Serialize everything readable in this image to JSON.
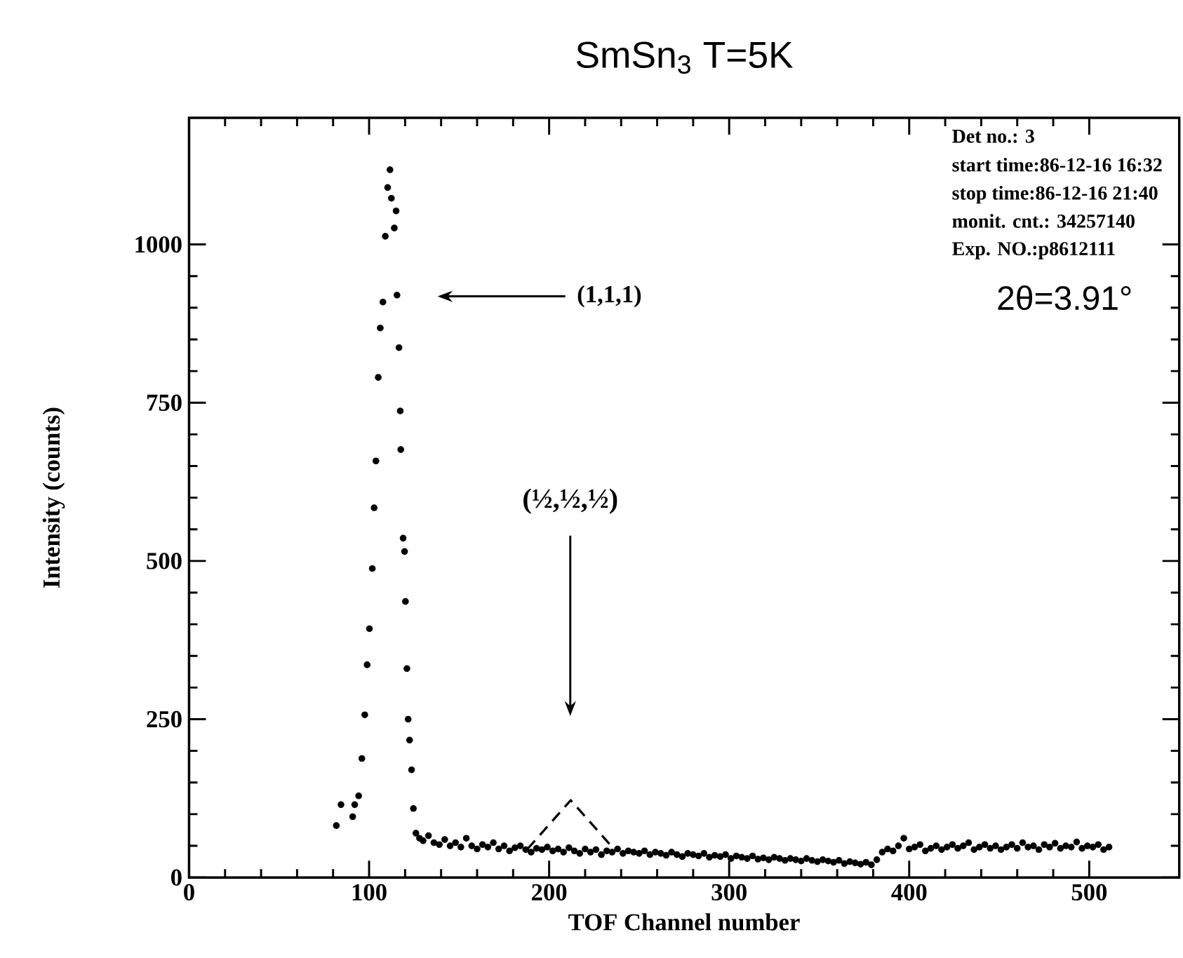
{
  "chart_data": {
    "type": "scatter",
    "title": "SmSn$_{3}$   T=5K",
    "xlabel": "TOF Channel number",
    "ylabel": "Intensity (counts)",
    "xlim": [
      0,
      550
    ],
    "ylim": [
      0,
      1200
    ],
    "xticks": [
      0,
      100,
      200,
      300,
      400,
      500
    ],
    "yticks": [
      0,
      250,
      500,
      750,
      1000
    ],
    "grid": false,
    "marker": "circle",
    "series": [
      {
        "color": "#000000",
        "x": [
          81.8,
          84.4,
          90.9,
          92,
          94.2,
          96,
          97.6,
          98.9,
          100.2,
          101.8,
          102.8,
          103.8,
          105.1,
          106.2,
          107.7,
          109,
          110.3,
          111.6,
          112.4,
          114,
          115,
          115.5,
          116.6,
          117.3,
          117.6,
          118.9,
          119.7,
          120.2,
          121,
          121.7,
          122.5,
          123.6,
          124.6,
          126,
          128,
          130,
          133,
          136,
          139,
          142,
          145,
          148,
          151,
          154,
          157,
          160,
          163,
          166,
          169,
          172,
          175,
          178,
          181,
          184,
          187,
          190,
          193,
          196,
          199,
          202,
          205,
          208,
          211,
          214,
          217,
          220,
          223,
          226,
          229,
          232,
          235,
          238,
          241,
          244,
          247,
          250,
          253,
          256,
          259,
          262,
          265,
          268,
          271,
          274,
          277,
          280,
          283,
          286,
          289,
          292,
          295,
          298,
          301,
          304,
          307,
          310,
          313,
          316,
          319,
          322,
          325,
          328,
          331,
          334,
          337,
          340,
          343,
          346,
          349,
          352,
          355,
          358,
          361,
          364,
          367,
          370,
          373,
          376,
          379,
          382,
          385,
          388,
          391,
          394,
          397,
          400,
          403,
          406,
          409,
          412,
          415,
          418,
          421,
          424,
          427,
          430,
          433,
          436,
          439,
          442,
          445,
          448,
          451,
          454,
          457,
          460,
          463,
          466,
          469,
          472,
          475,
          478,
          481,
          484,
          487,
          490,
          493,
          496,
          499,
          502,
          505,
          508,
          511
        ],
        "values": [
          82,
          115,
          96,
          115,
          129,
          188,
          257,
          336,
          393,
          488,
          584,
          658,
          790,
          868,
          909,
          1013,
          1090,
          1118,
          1073,
          1026,
          1053,
          920,
          837,
          737,
          676,
          536,
          515,
          436,
          330,
          250,
          217,
          170,
          109,
          70,
          62,
          58,
          66,
          55,
          52,
          60,
          50,
          55,
          48,
          62,
          50,
          45,
          52,
          48,
          55,
          45,
          50,
          42,
          47,
          50,
          44,
          40,
          46,
          44,
          48,
          42,
          45,
          40,
          47,
          42,
          38,
          45,
          40,
          44,
          36,
          42,
          40,
          45,
          38,
          42,
          40,
          38,
          42,
          36,
          40,
          38,
          35,
          40,
          36,
          33,
          38,
          36,
          34,
          38,
          32,
          35,
          33,
          36,
          30,
          34,
          32,
          30,
          34,
          29,
          31,
          28,
          32,
          30,
          27,
          30,
          28,
          26,
          30,
          27,
          25,
          28,
          26,
          24,
          27,
          22,
          25,
          23,
          21,
          24,
          20,
          28,
          40,
          45,
          42,
          50,
          62,
          45,
          48,
          52,
          42,
          46,
          50,
          44,
          48,
          52,
          46,
          50,
          55,
          44,
          48,
          52,
          46,
          50,
          44,
          48,
          52,
          46,
          55,
          48,
          50,
          44,
          52,
          48,
          54,
          46,
          50,
          48,
          56,
          46,
          50,
          48,
          52,
          44,
          48
        ]
      },
      {
        "type": "line",
        "color": "#000000",
        "line_style": "dashed",
        "marker": "none",
        "x": [
          188,
          212,
          236
        ],
        "values": [
          45,
          122,
          45
        ]
      }
    ],
    "annotations": [
      "Det no.: 3",
      "start time:86-12-16 16:32",
      "stop time:86-12-16 21:40",
      "monit. cnt.: 34257140",
      "Exp. NO.:p8612111",
      "2θ=3.91°",
      "(1,1,1)",
      "(½,½,½)"
    ]
  }
}
